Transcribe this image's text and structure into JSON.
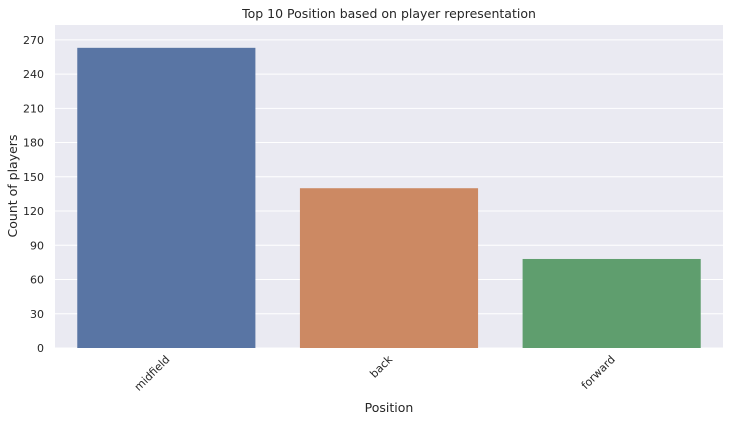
{
  "chart_data": {
    "type": "bar",
    "title": "Top 10 Position based on player representation",
    "xlabel": "Position",
    "ylabel": "Count of players",
    "categories": [
      "midfield",
      "back",
      "forward"
    ],
    "values": [
      263,
      140,
      78
    ],
    "ylim": [
      0,
      283
    ],
    "yticks": [
      0,
      30,
      60,
      90,
      120,
      150,
      180,
      210,
      240,
      270
    ],
    "grid": true,
    "legend": "none",
    "bar_colors": [
      "#5975a4",
      "#cc8963",
      "#5f9e6e"
    ],
    "background_color": "#eaeaf2",
    "grid_color": "#ffffff"
  }
}
